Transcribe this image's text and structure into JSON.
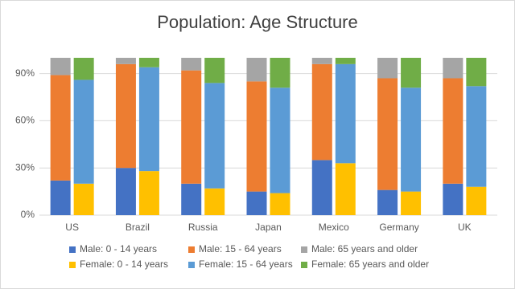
{
  "chart_data": {
    "type": "stacked-bar",
    "title": "Population: Age Structure",
    "categories": [
      "US",
      "Brazil",
      "Russia",
      "Japan",
      "Mexico",
      "Germany",
      "UK"
    ],
    "series": [
      {
        "name": "Male: 0 - 14 years",
        "color": "#4472c4",
        "stack": 0,
        "values": [
          22,
          30,
          20,
          15,
          35,
          16,
          20
        ]
      },
      {
        "name": "Male: 15 - 64 years",
        "color": "#ed7d31",
        "stack": 0,
        "values": [
          67,
          66,
          72,
          70,
          61,
          71,
          67
        ]
      },
      {
        "name": "Male: 65 years and older",
        "color": "#a5a5a5",
        "stack": 0,
        "values": [
          11,
          4,
          8,
          15,
          4,
          13,
          13
        ]
      },
      {
        "name": "Female: 0 - 14 years",
        "color": "#ffc000",
        "stack": 1,
        "values": [
          20,
          28,
          17,
          14,
          33,
          15,
          18
        ]
      },
      {
        "name": "Female: 15 - 64 years",
        "color": "#5b9bd5",
        "stack": 1,
        "values": [
          66,
          66,
          67,
          67,
          63,
          66,
          64
        ]
      },
      {
        "name": "Female: 65 years and older",
        "color": "#70ad47",
        "stack": 1,
        "values": [
          14,
          6,
          16,
          19,
          4,
          19,
          18
        ]
      }
    ],
    "ylim": [
      0,
      100
    ],
    "yticks": [
      {
        "value": 0,
        "label": "0%"
      },
      {
        "value": 30,
        "label": "30%"
      },
      {
        "value": 60,
        "label": "60%"
      },
      {
        "value": 90,
        "label": "90%"
      }
    ],
    "grid": true
  }
}
